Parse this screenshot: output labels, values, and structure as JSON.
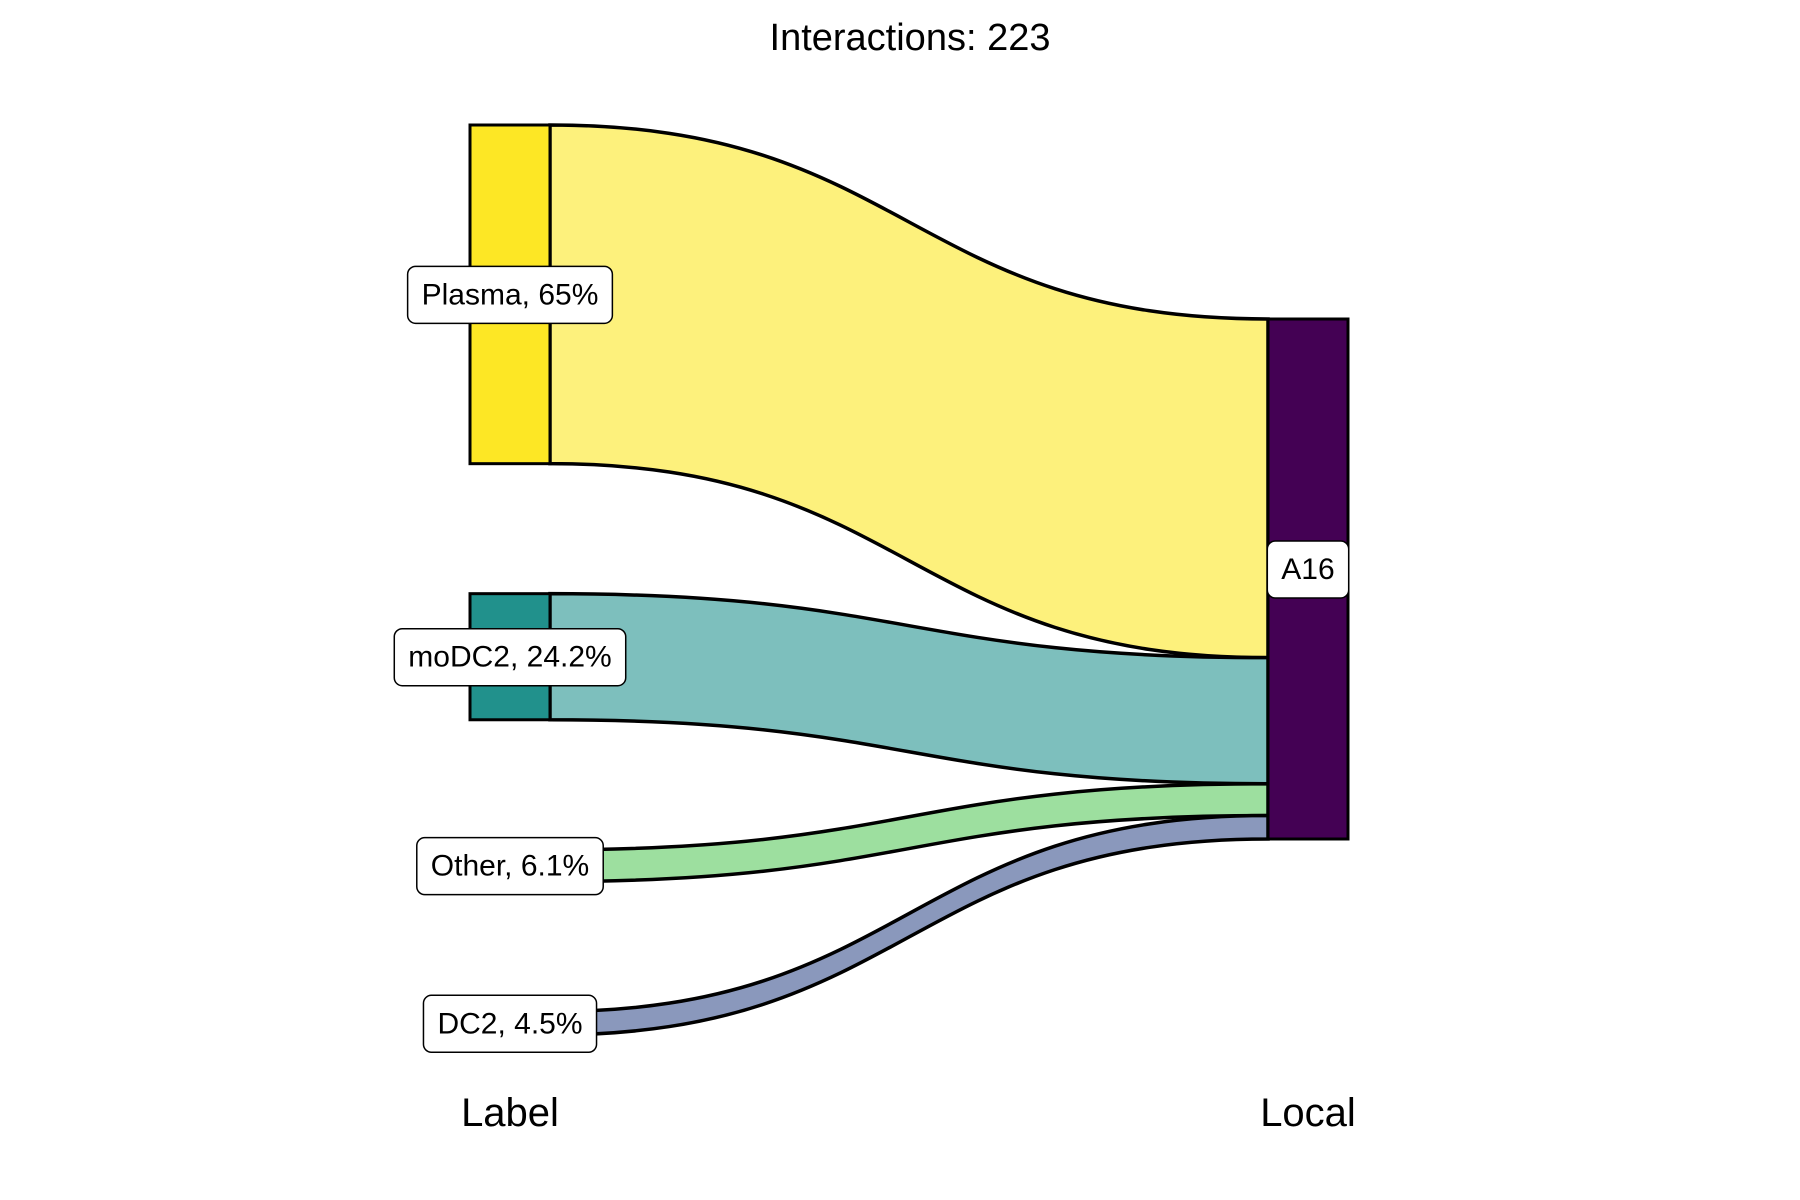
{
  "chart_data": {
    "type": "sankey",
    "title": "Interactions: 223",
    "axes": [
      "Label",
      "Local"
    ],
    "sources": [
      {
        "name": "Plasma",
        "label": "Plasma, 65%",
        "percent": 65.0,
        "node_color": "#fde725",
        "flow_color": "#fdf17c"
      },
      {
        "name": "moDC2",
        "label": "moDC2, 24.2%",
        "percent": 24.2,
        "node_color": "#21918c",
        "flow_color": "#7dbfbd"
      },
      {
        "name": "Other",
        "label": "Other, 6.1%",
        "percent": 6.1,
        "node_color": "#9ddf9f",
        "flow_color": "#9ddf9f"
      },
      {
        "name": "DC2",
        "label": "DC2, 4.5%",
        "percent": 4.5,
        "node_color": "#8a98bc",
        "flow_color": "#8a98bc"
      }
    ],
    "targets": [
      {
        "name": "A16",
        "label": "A16",
        "percent": 100,
        "node_color": "#440154"
      }
    ],
    "flows": [
      {
        "from": "Plasma",
        "to": "A16",
        "percent": 65.0
      },
      {
        "from": "moDC2",
        "to": "A16",
        "percent": 24.2
      },
      {
        "from": "Other",
        "to": "A16",
        "percent": 6.1
      },
      {
        "from": "DC2",
        "to": "A16",
        "percent": 4.5
      }
    ]
  }
}
